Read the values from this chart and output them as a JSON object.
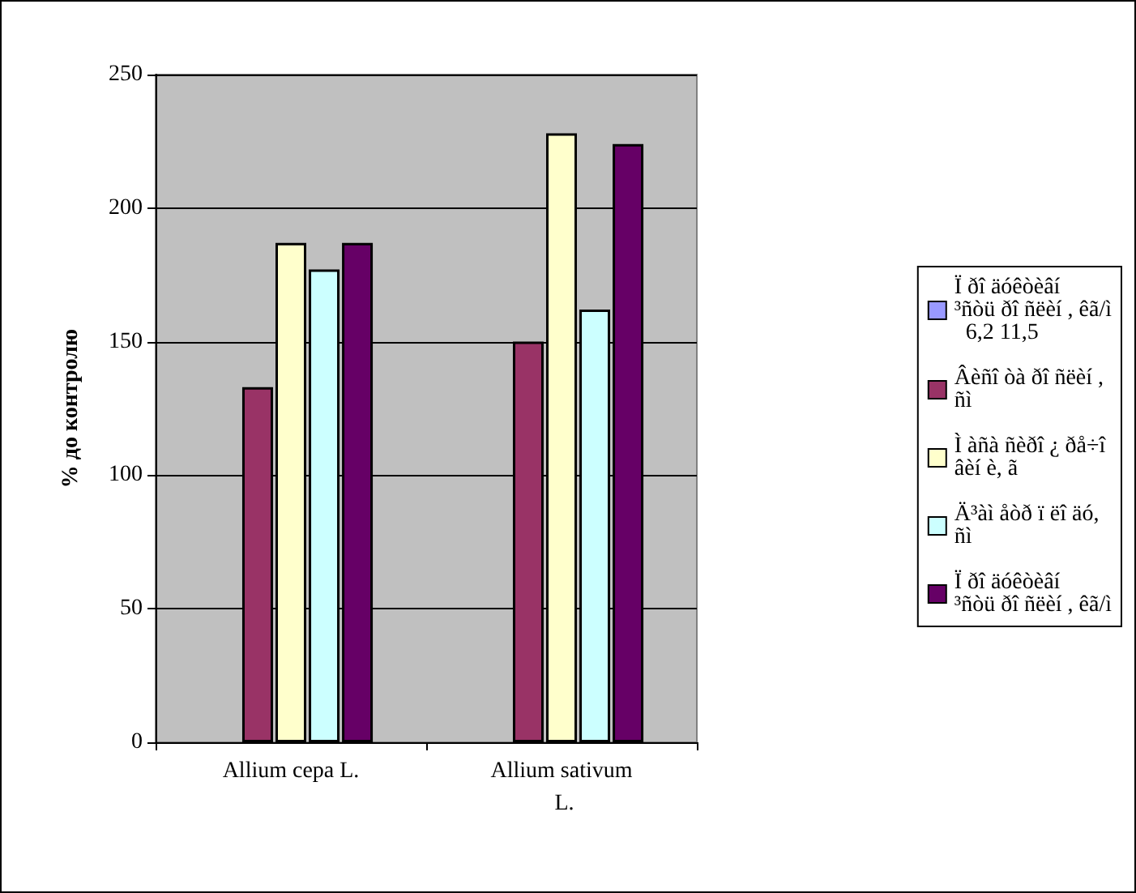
{
  "chart_data": {
    "type": "bar",
    "ylabel": "% до контролю",
    "categories": [
      "Allium cepa L.",
      "Allium sativum L."
    ],
    "series": [
      {
        "name": "Ï ðî äóêòèâí ³ñòü ðî ñëèí , êã/ì  6,2 11,5",
        "color": "#9999ff",
        "values": [
          null,
          null
        ]
      },
      {
        "name": "Âèñî òà ðî ñëèí , ñì",
        "color": "#993366",
        "values": [
          133,
          150
        ]
      },
      {
        "name": "Ì àñà ñèðî ¿ ðå÷î âèí è, ã",
        "color": "#ffffcc",
        "values": [
          187,
          228
        ]
      },
      {
        "name": "Ä³àì åòð ï ëî äó, ñì",
        "color": "#ccffff",
        "values": [
          177,
          162
        ]
      },
      {
        "name": "Ï ðî äóêòèâí ³ñòü ðî ñëèí , êã/ì",
        "color": "#660066",
        "values": [
          187,
          224
        ]
      }
    ],
    "ylim": [
      0,
      250
    ],
    "yticks": [
      0,
      50,
      100,
      150,
      200,
      250
    ],
    "grid": "y",
    "legend": "right"
  }
}
